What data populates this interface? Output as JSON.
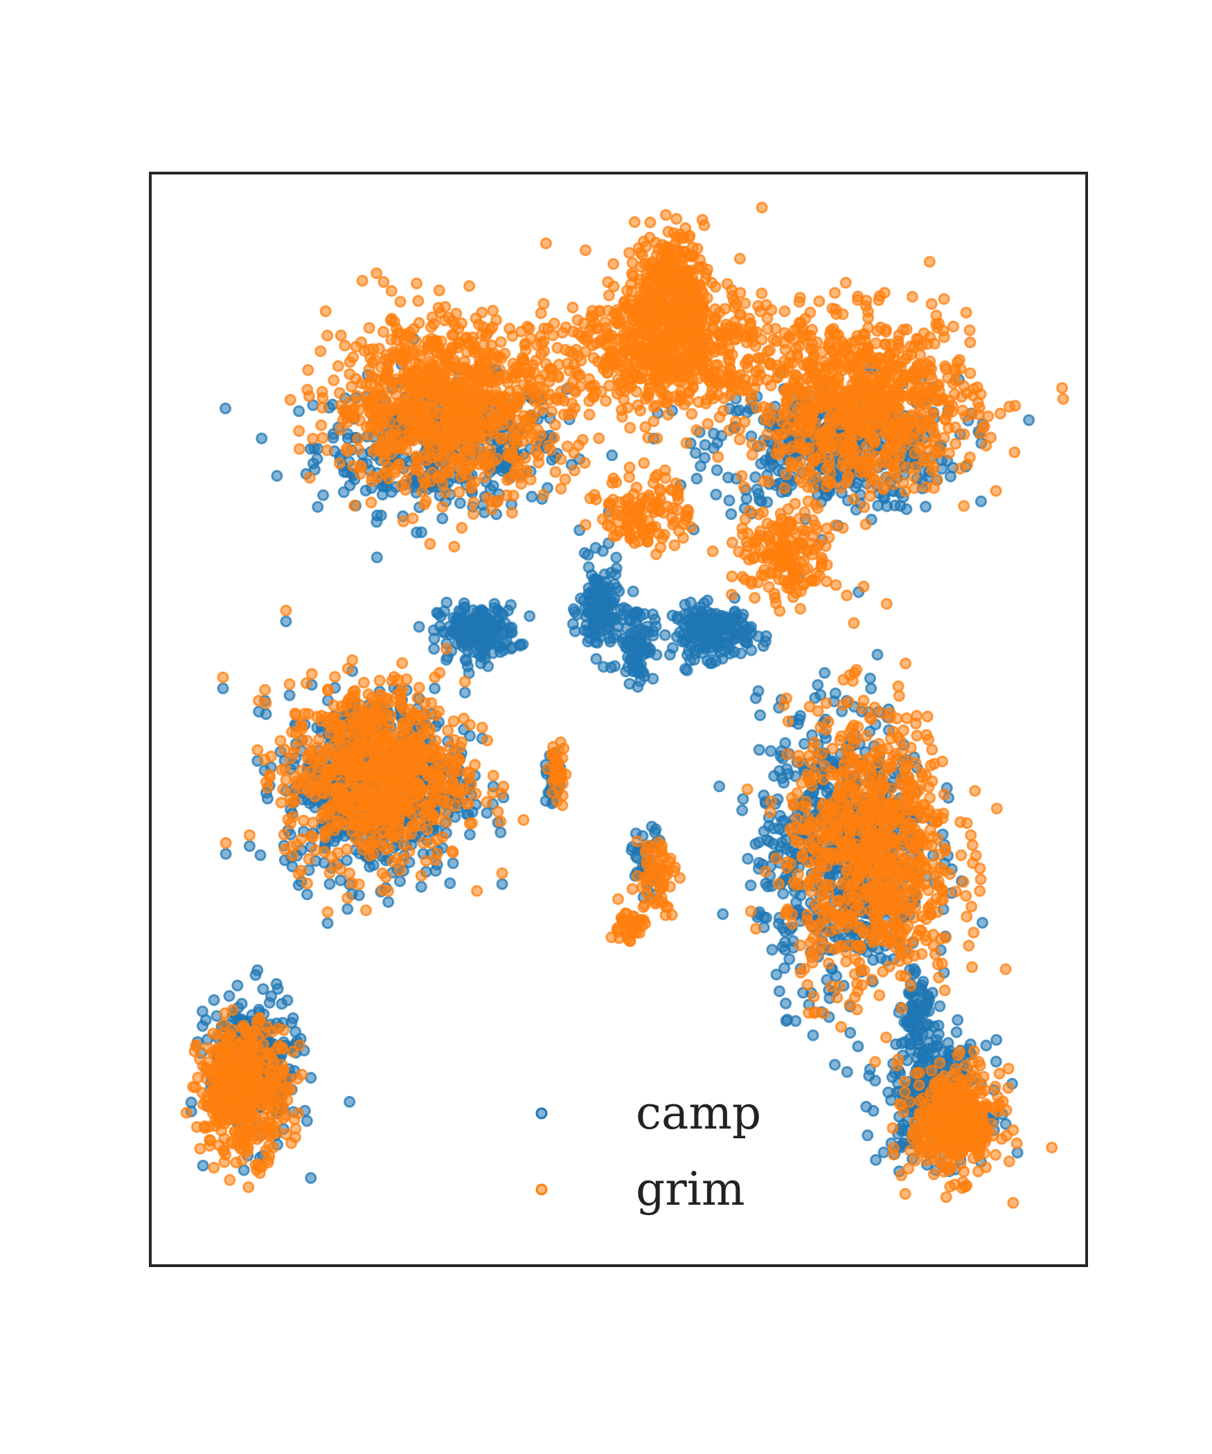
{
  "chart_data": {
    "type": "scatter",
    "title": "",
    "xlabel": "",
    "ylabel": "",
    "xlim": [
      0,
      100
    ],
    "ylim": [
      0,
      100
    ],
    "grid": false,
    "ticks": false,
    "legend_placement": "lower-center",
    "marker_opacity": 0.55,
    "series": [
      {
        "name": "camp",
        "color": "#1f77b4",
        "clusters": [
          {
            "x": 31.0,
            "y": 75.0,
            "sx": 11.0,
            "sy": 5.0,
            "n": 420
          },
          {
            "x": 73.0,
            "y": 75.0,
            "sx": 11.0,
            "sy": 5.0,
            "n": 420
          },
          {
            "x": 35.0,
            "y": 58.0,
            "sx": 3.5,
            "sy": 2.0,
            "n": 200
          },
          {
            "x": 60.0,
            "y": 58.0,
            "sx": 3.5,
            "sy": 2.0,
            "n": 200
          },
          {
            "x": 48.0,
            "y": 60.0,
            "sx": 1.8,
            "sy": 3.5,
            "n": 140
          },
          {
            "x": 52.0,
            "y": 57.0,
            "sx": 1.5,
            "sy": 3.0,
            "n": 90
          },
          {
            "x": 24.0,
            "y": 44.0,
            "sx": 8.0,
            "sy": 7.0,
            "n": 650
          },
          {
            "x": 74.0,
            "y": 38.0,
            "sx": 7.5,
            "sy": 11.0,
            "n": 700
          },
          {
            "x": 84.0,
            "y": 15.0,
            "sx": 4.5,
            "sy": 4.5,
            "n": 350
          },
          {
            "x": 11.0,
            "y": 18.0,
            "sx": 4.0,
            "sy": 5.5,
            "n": 330
          },
          {
            "x": 82.0,
            "y": 23.0,
            "sx": 1.5,
            "sy": 2.5,
            "n": 70
          },
          {
            "x": 43.0,
            "y": 44.0,
            "sx": 0.6,
            "sy": 2.2,
            "n": 30
          },
          {
            "x": 53.0,
            "y": 37.0,
            "sx": 1.6,
            "sy": 2.5,
            "n": 40
          }
        ]
      },
      {
        "name": "grim",
        "color": "#ff7f0e",
        "clusters": [
          {
            "x": 32.0,
            "y": 79.0,
            "sx": 10.5,
            "sy": 6.5,
            "n": 950
          },
          {
            "x": 76.0,
            "y": 79.0,
            "sx": 10.0,
            "sy": 6.5,
            "n": 850
          },
          {
            "x": 55.0,
            "y": 84.0,
            "sx": 9.0,
            "sy": 5.0,
            "n": 650
          },
          {
            "x": 55.5,
            "y": 90.0,
            "sx": 3.0,
            "sy": 4.0,
            "n": 250
          },
          {
            "x": 53.0,
            "y": 69.0,
            "sx": 4.0,
            "sy": 3.0,
            "n": 120
          },
          {
            "x": 68.0,
            "y": 65.0,
            "sx": 4.5,
            "sy": 3.5,
            "n": 180
          },
          {
            "x": 24.0,
            "y": 45.0,
            "sx": 8.0,
            "sy": 7.0,
            "n": 800
          },
          {
            "x": 77.0,
            "y": 38.0,
            "sx": 7.5,
            "sy": 10.5,
            "n": 850
          },
          {
            "x": 86.0,
            "y": 13.0,
            "sx": 4.0,
            "sy": 4.0,
            "n": 400
          },
          {
            "x": 10.0,
            "y": 16.0,
            "sx": 4.0,
            "sy": 5.0,
            "n": 450
          },
          {
            "x": 43.5,
            "y": 45.0,
            "sx": 0.7,
            "sy": 2.5,
            "n": 35
          },
          {
            "x": 54.0,
            "y": 36.0,
            "sx": 1.8,
            "sy": 3.0,
            "n": 60
          },
          {
            "x": 51.0,
            "y": 31.0,
            "sx": 1.4,
            "sy": 1.4,
            "n": 40
          }
        ]
      }
    ]
  }
}
